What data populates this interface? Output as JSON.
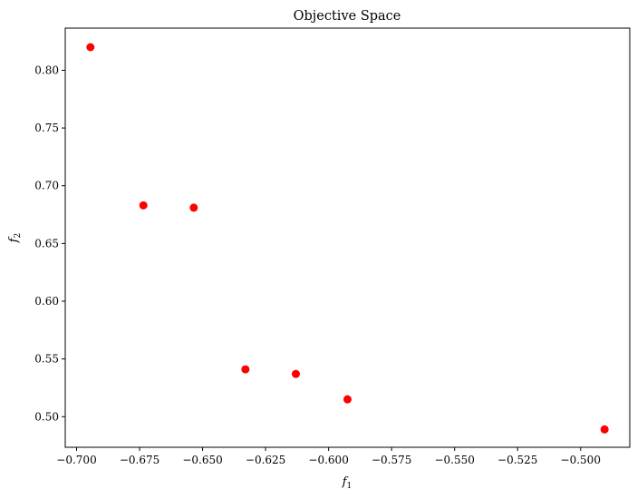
{
  "chart_data": {
    "type": "scatter",
    "title": "Objective Space",
    "xlabel": "f",
    "xlabel_sub": "1",
    "ylabel": "f",
    "ylabel_sub": "2",
    "xlim": [
      -0.7045,
      -0.4805
    ],
    "ylim": [
      0.4735,
      0.8365
    ],
    "xticks": [
      -0.7,
      -0.675,
      -0.65,
      -0.625,
      -0.6,
      -0.575,
      -0.55,
      -0.525,
      -0.5
    ],
    "xtick_labels": [
      "−0.700",
      "−0.675",
      "−0.650",
      "−0.625",
      "−0.600",
      "−0.575",
      "−0.550",
      "−0.525",
      "−0.500"
    ],
    "yticks": [
      0.5,
      0.55,
      0.6,
      0.65,
      0.7,
      0.75,
      0.8
    ],
    "ytick_labels": [
      "0.50",
      "0.55",
      "0.60",
      "0.65",
      "0.70",
      "0.75",
      "0.80"
    ],
    "grid": false,
    "marker_color": "#ff0000",
    "points": [
      {
        "x": -0.6945,
        "y": 0.82
      },
      {
        "x": -0.6735,
        "y": 0.683
      },
      {
        "x": -0.6535,
        "y": 0.681
      },
      {
        "x": -0.633,
        "y": 0.541
      },
      {
        "x": -0.613,
        "y": 0.537
      },
      {
        "x": -0.5925,
        "y": 0.515
      },
      {
        "x": -0.4905,
        "y": 0.489
      }
    ]
  }
}
